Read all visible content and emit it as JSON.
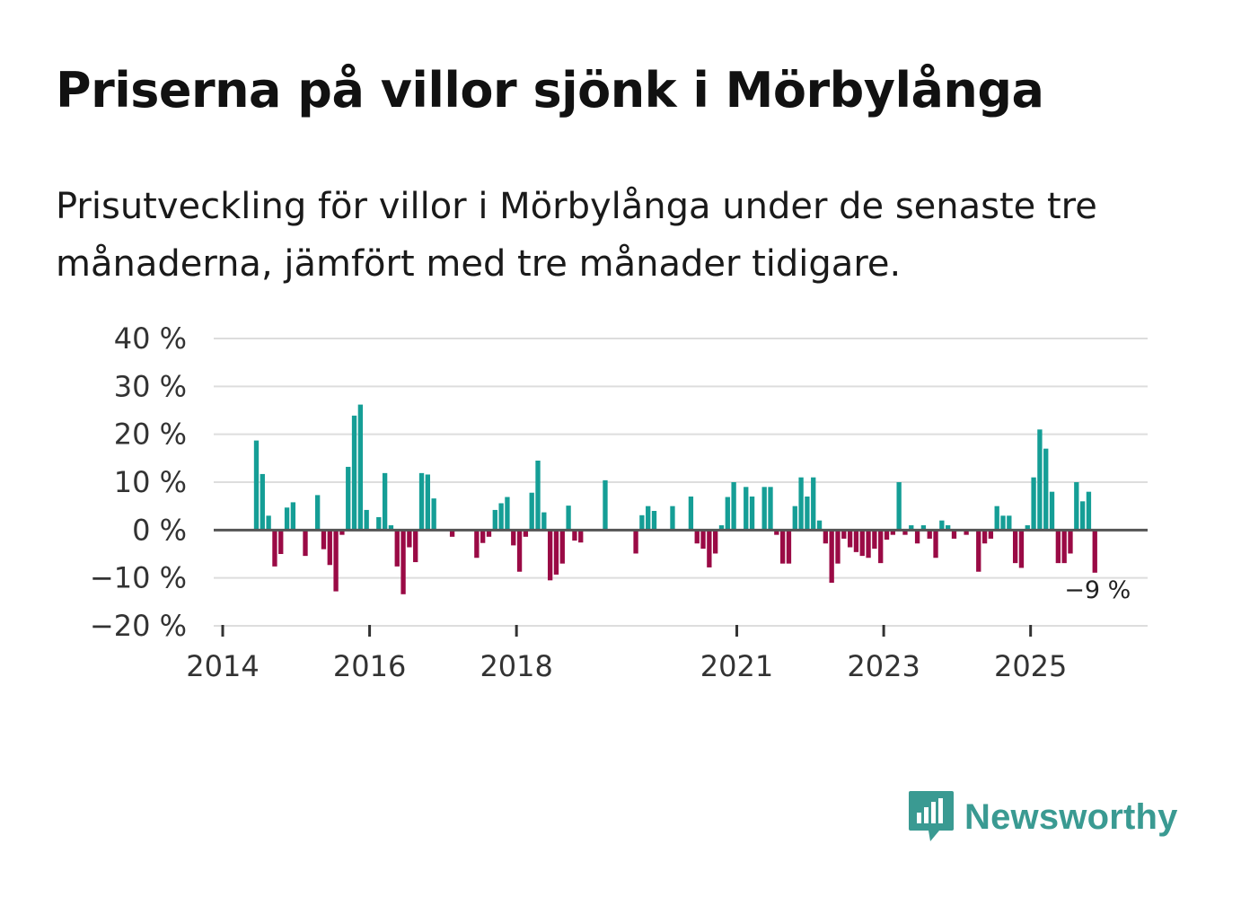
{
  "title": "Priserna på villor sjönk i Mörbylånga",
  "subtitle": "Prisutveckling för villor i Mörbylånga under de senaste tre månaderna, jämfört med tre månader tidigare.",
  "logo": {
    "text": "Newsworthy",
    "icon": "newsworthy-logo-icon"
  },
  "colors": {
    "positive": "#159e96",
    "negative": "#9a0a45",
    "grid": "#dddddd",
    "zero": "#555555",
    "brand": "#3a9a92"
  },
  "chart_data": {
    "type": "bar",
    "title": "",
    "xlabel": "",
    "ylabel": "",
    "ylim": [
      -20,
      40
    ],
    "y_ticks": [
      {
        "value": 40,
        "label": "40 %"
      },
      {
        "value": 30,
        "label": "30 %"
      },
      {
        "value": 20,
        "label": "20 %"
      },
      {
        "value": 10,
        "label": "10 %"
      },
      {
        "value": 0,
        "label": "0 %"
      },
      {
        "value": -10,
        "label": "−10 %"
      },
      {
        "value": -20,
        "label": "−20 %"
      }
    ],
    "x_start": "2014-01",
    "x_end": "2026-09",
    "x_ticks": [
      {
        "year": 2014,
        "label": "2014"
      },
      {
        "year": 2016,
        "label": "2016"
      },
      {
        "year": 2018,
        "label": "2018"
      },
      {
        "year": 2021,
        "label": "2021"
      },
      {
        "year": 2023,
        "label": "2023"
      },
      {
        "year": 2025,
        "label": "2025"
      }
    ],
    "last_value_label": "−9 %",
    "series": [
      {
        "name": "Prisutveckling",
        "unit": "%",
        "points": [
          {
            "date": "2014-06",
            "value": 18.7
          },
          {
            "date": "2014-07",
            "value": 11.7
          },
          {
            "date": "2014-08",
            "value": 3.0
          },
          {
            "date": "2014-09",
            "value": -7.6
          },
          {
            "date": "2014-10",
            "value": -5.0
          },
          {
            "date": "2014-11",
            "value": 4.7
          },
          {
            "date": "2014-12",
            "value": 5.8
          },
          {
            "date": "2015-02",
            "value": -5.4
          },
          {
            "date": "2015-04",
            "value": 7.3
          },
          {
            "date": "2015-05",
            "value": -4.0
          },
          {
            "date": "2015-06",
            "value": -7.3
          },
          {
            "date": "2015-07",
            "value": -12.8
          },
          {
            "date": "2015-08",
            "value": -1.0
          },
          {
            "date": "2015-09",
            "value": 13.2
          },
          {
            "date": "2015-10",
            "value": 23.9
          },
          {
            "date": "2015-11",
            "value": 26.2
          },
          {
            "date": "2015-12",
            "value": 4.2
          },
          {
            "date": "2016-02",
            "value": 2.7
          },
          {
            "date": "2016-03",
            "value": 11.9
          },
          {
            "date": "2016-04",
            "value": 1.0
          },
          {
            "date": "2016-05",
            "value": -7.6
          },
          {
            "date": "2016-06",
            "value": -13.4
          },
          {
            "date": "2016-07",
            "value": -3.6
          },
          {
            "date": "2016-08",
            "value": -6.7
          },
          {
            "date": "2016-09",
            "value": 11.9
          },
          {
            "date": "2016-10",
            "value": 11.6
          },
          {
            "date": "2016-11",
            "value": 6.6
          },
          {
            "date": "2017-02",
            "value": -1.4
          },
          {
            "date": "2017-06",
            "value": -5.8
          },
          {
            "date": "2017-07",
            "value": -2.7
          },
          {
            "date": "2017-08",
            "value": -1.4
          },
          {
            "date": "2017-09",
            "value": 4.2
          },
          {
            "date": "2017-10",
            "value": 5.6
          },
          {
            "date": "2017-11",
            "value": 6.9
          },
          {
            "date": "2017-12",
            "value": -3.2
          },
          {
            "date": "2018-01",
            "value": -8.7
          },
          {
            "date": "2018-02",
            "value": -1.4
          },
          {
            "date": "2018-03",
            "value": 7.8
          },
          {
            "date": "2018-04",
            "value": 14.5
          },
          {
            "date": "2018-05",
            "value": 3.7
          },
          {
            "date": "2018-06",
            "value": -10.5
          },
          {
            "date": "2018-07",
            "value": -9.3
          },
          {
            "date": "2018-08",
            "value": -7.0
          },
          {
            "date": "2018-09",
            "value": 5.1
          },
          {
            "date": "2018-10",
            "value": -2.2
          },
          {
            "date": "2018-11",
            "value": -2.6
          },
          {
            "date": "2019-03",
            "value": 10.4
          },
          {
            "date": "2019-08",
            "value": -4.9
          },
          {
            "date": "2019-09",
            "value": 3.1
          },
          {
            "date": "2019-10",
            "value": 5.0
          },
          {
            "date": "2019-11",
            "value": 4.0
          },
          {
            "date": "2020-02",
            "value": 5.0
          },
          {
            "date": "2020-05",
            "value": 7.0
          },
          {
            "date": "2020-06",
            "value": -2.8
          },
          {
            "date": "2020-07",
            "value": -3.9
          },
          {
            "date": "2020-08",
            "value": -7.8
          },
          {
            "date": "2020-09",
            "value": -4.9
          },
          {
            "date": "2020-10",
            "value": 1.0
          },
          {
            "date": "2020-11",
            "value": 6.9
          },
          {
            "date": "2020-12",
            "value": 10.0
          },
          {
            "date": "2021-02",
            "value": 9.0
          },
          {
            "date": "2021-03",
            "value": 7.0
          },
          {
            "date": "2021-05",
            "value": 9.0
          },
          {
            "date": "2021-06",
            "value": 9.0
          },
          {
            "date": "2021-07",
            "value": -1.0
          },
          {
            "date": "2021-08",
            "value": -7.0
          },
          {
            "date": "2021-09",
            "value": -7.0
          },
          {
            "date": "2021-10",
            "value": 5.0
          },
          {
            "date": "2021-11",
            "value": 11.0
          },
          {
            "date": "2021-12",
            "value": 7.0
          },
          {
            "date": "2022-01",
            "value": 11.0
          },
          {
            "date": "2022-02",
            "value": 2.0
          },
          {
            "date": "2022-03",
            "value": -2.8
          },
          {
            "date": "2022-04",
            "value": -11.0
          },
          {
            "date": "2022-05",
            "value": -7.0
          },
          {
            "date": "2022-06",
            "value": -1.8
          },
          {
            "date": "2022-07",
            "value": -3.6
          },
          {
            "date": "2022-08",
            "value": -4.6
          },
          {
            "date": "2022-09",
            "value": -5.4
          },
          {
            "date": "2022-10",
            "value": -5.8
          },
          {
            "date": "2022-11",
            "value": -3.9
          },
          {
            "date": "2022-12",
            "value": -6.9
          },
          {
            "date": "2023-01",
            "value": -2.0
          },
          {
            "date": "2023-02",
            "value": -1.0
          },
          {
            "date": "2023-03",
            "value": 10.0
          },
          {
            "date": "2023-04",
            "value": -1.0
          },
          {
            "date": "2023-05",
            "value": 1.0
          },
          {
            "date": "2023-06",
            "value": -2.8
          },
          {
            "date": "2023-07",
            "value": 1.0
          },
          {
            "date": "2023-08",
            "value": -1.8
          },
          {
            "date": "2023-09",
            "value": -5.8
          },
          {
            "date": "2023-10",
            "value": 2.0
          },
          {
            "date": "2023-11",
            "value": 1.0
          },
          {
            "date": "2023-12",
            "value": -1.8
          },
          {
            "date": "2024-02",
            "value": -1.0
          },
          {
            "date": "2024-04",
            "value": -8.7
          },
          {
            "date": "2024-05",
            "value": -2.8
          },
          {
            "date": "2024-06",
            "value": -1.8
          },
          {
            "date": "2024-07",
            "value": 5.0
          },
          {
            "date": "2024-08",
            "value": 3.0
          },
          {
            "date": "2024-09",
            "value": 3.0
          },
          {
            "date": "2024-10",
            "value": -6.9
          },
          {
            "date": "2024-11",
            "value": -7.9
          },
          {
            "date": "2024-12",
            "value": 1.0
          },
          {
            "date": "2025-01",
            "value": 11.0
          },
          {
            "date": "2025-02",
            "value": 21.0
          },
          {
            "date": "2025-03",
            "value": 17.0
          },
          {
            "date": "2025-04",
            "value": 8.0
          },
          {
            "date": "2025-05",
            "value": -6.9
          },
          {
            "date": "2025-06",
            "value": -6.9
          },
          {
            "date": "2025-07",
            "value": -4.9
          },
          {
            "date": "2025-08",
            "value": 10.0
          },
          {
            "date": "2025-09",
            "value": 6.0
          },
          {
            "date": "2025-10",
            "value": 8.0
          },
          {
            "date": "2025-11",
            "value": -8.9
          }
        ]
      }
    ]
  }
}
